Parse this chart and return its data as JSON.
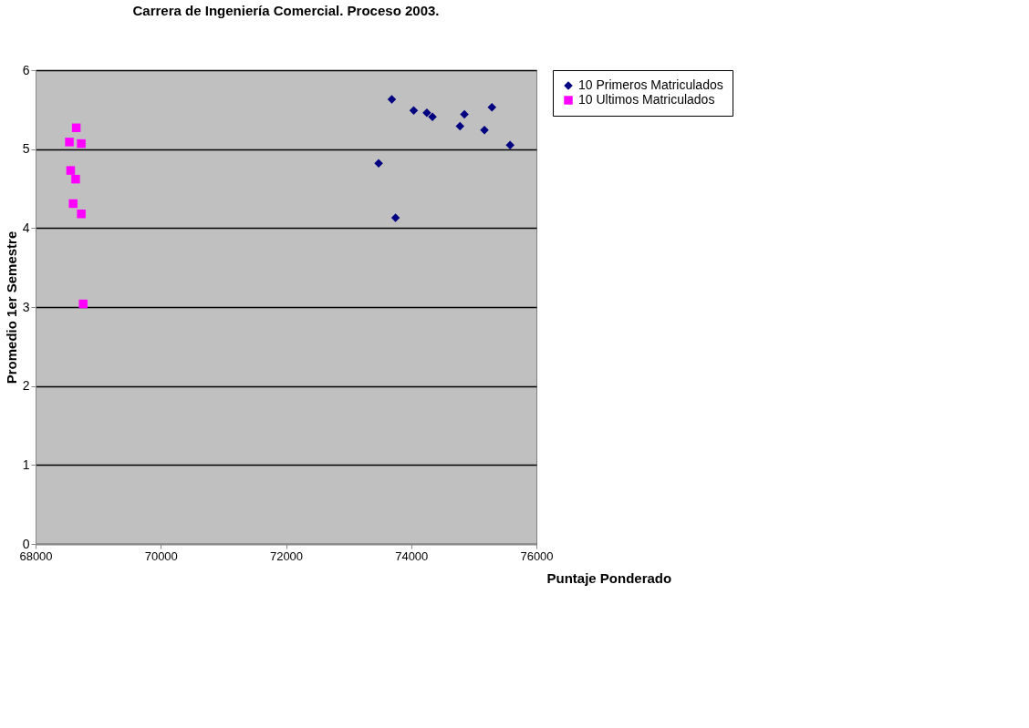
{
  "chart_data": {
    "type": "scatter",
    "title": "Carrera de Ingeniería Comercial. Proceso 2003.",
    "xlabel": "Puntaje Ponderado",
    "ylabel": "Promedio 1er Semestre",
    "xlim": [
      68000,
      76000
    ],
    "xticks": [
      68000,
      70000,
      72000,
      74000,
      76000
    ],
    "ylim": [
      0,
      6
    ],
    "yticks": [
      0,
      1,
      2,
      3,
      4,
      5,
      6
    ],
    "grid": "y",
    "legend": "right",
    "series": [
      {
        "name": "10 Primeros Matriculados",
        "color": "#000080",
        "marker": "diamond",
        "x": [
          73690,
          74040,
          74250,
          74340,
          74850,
          74780,
          75290,
          75170,
          75580,
          73480,
          73750
        ],
        "values": [
          5.63,
          5.49,
          5.46,
          5.41,
          5.44,
          5.29,
          5.53,
          5.24,
          5.05,
          4.82,
          4.13
        ]
      },
      {
        "name": "10 Ultimos Matriculados",
        "color": "#ff00ff",
        "marker": "square",
        "x": [
          68650,
          68540,
          68730,
          68560,
          68640,
          68600,
          68730,
          68760
        ],
        "values": [
          5.27,
          5.09,
          5.07,
          4.73,
          4.62,
          4.31,
          4.18,
          3.04
        ]
      }
    ]
  }
}
